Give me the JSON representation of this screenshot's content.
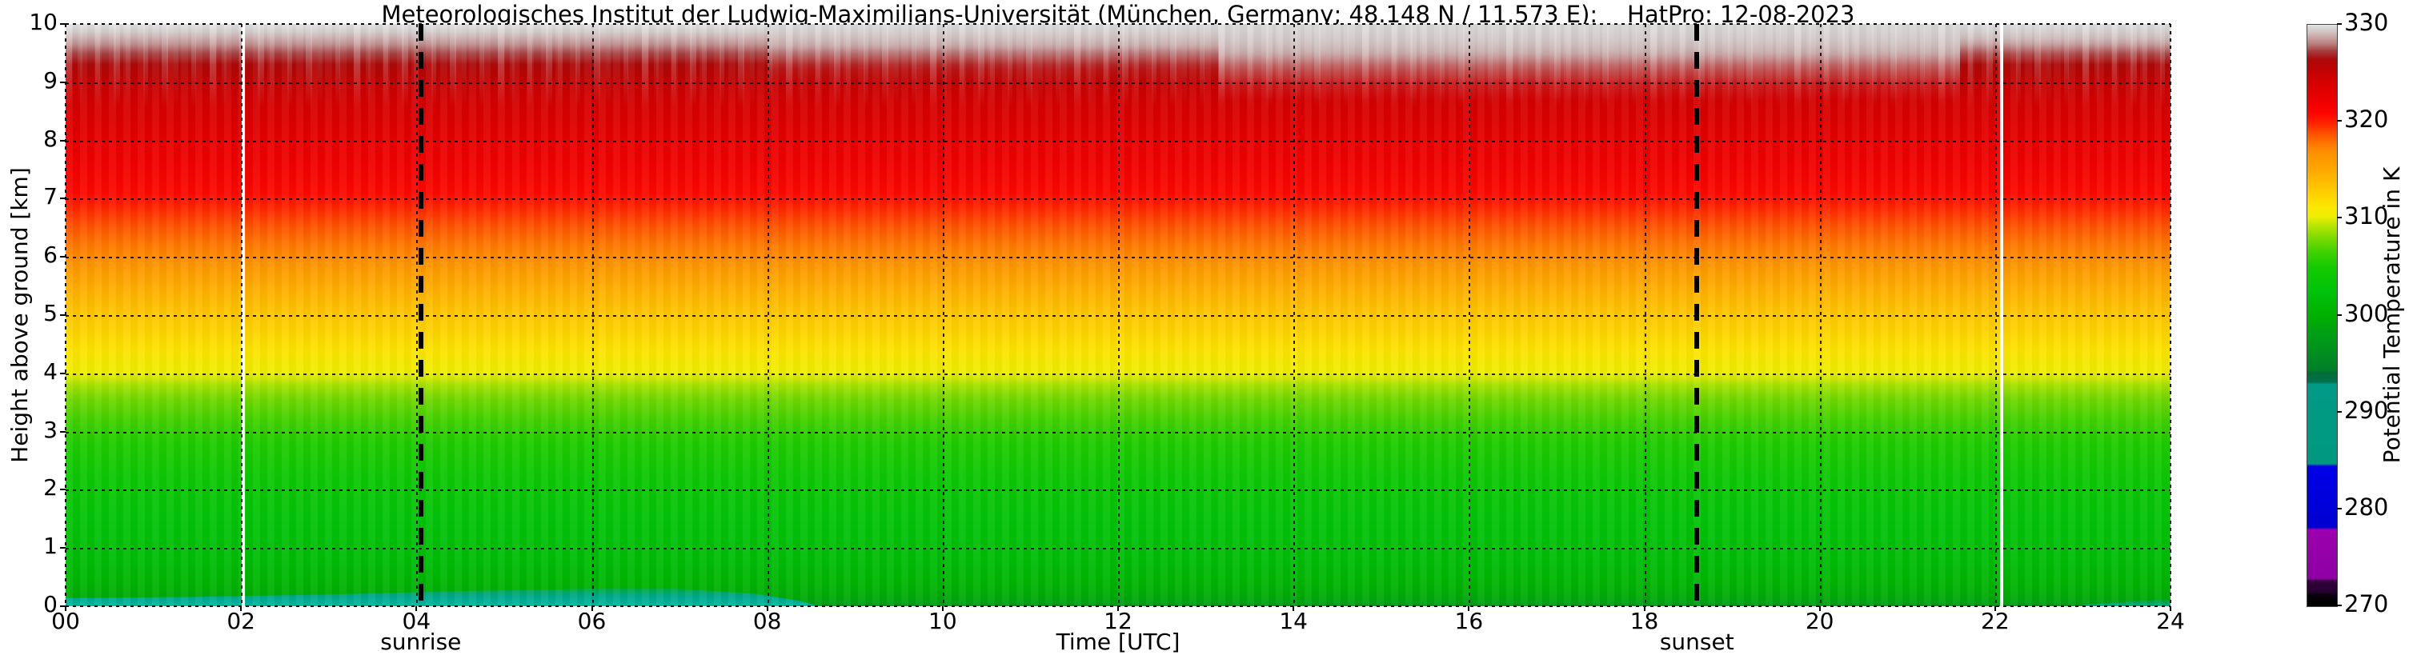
{
  "chart_data": {
    "type": "heatmap",
    "title": "Meteorologisches Institut der Ludwig-Maximilians-Universität (München, Germany; 48.148 N / 11.573 E):    HatPro: 12-08-2023",
    "xlabel": "Time [UTC]",
    "ylabel": "Height above ground [km]",
    "x_range_hours": [
      0,
      24
    ],
    "y_range_km": [
      0,
      10
    ],
    "x_tick_hours": [
      0,
      2,
      4,
      6,
      8,
      10,
      12,
      14,
      16,
      18,
      20,
      22,
      24
    ],
    "x_tick_labels": [
      "00",
      "02",
      "04",
      "06",
      "08",
      "10",
      "12",
      "14",
      "16",
      "18",
      "20",
      "22",
      "24"
    ],
    "y_tick_km": [
      0,
      1,
      2,
      3,
      4,
      5,
      6,
      7,
      8,
      9,
      10
    ],
    "y_tick_labels": [
      "0",
      "1",
      "2",
      "3",
      "4",
      "5",
      "6",
      "7",
      "8",
      "9",
      "10"
    ],
    "grid": "black dotted gridlines at every 2 h and every 1 km; dotted black frame",
    "colorbar": {
      "label": "Potential Temperature in K",
      "range": [
        270,
        330
      ],
      "tick_values": [
        270,
        280,
        290,
        300,
        310,
        320,
        330
      ],
      "tick_labels": [
        "270",
        "280",
        "290",
        "300",
        "310",
        "320",
        "330"
      ],
      "stops": [
        [
          270,
          "#000000"
        ],
        [
          271.2,
          "#08000c"
        ],
        [
          271.45,
          "#260030"
        ],
        [
          272.6,
          "#31003c"
        ],
        [
          272.85,
          "#8d00a2"
        ],
        [
          277.9,
          "#9c00b0"
        ],
        [
          278.15,
          "#0000d2"
        ],
        [
          284.45,
          "#0000e8"
        ],
        [
          284.7,
          "#00997f"
        ],
        [
          292.9,
          "#009a86"
        ],
        [
          293.15,
          "#00704d"
        ],
        [
          294.1,
          "#006e36"
        ],
        [
          294.35,
          "#007e28"
        ],
        [
          296,
          "#008d1f"
        ],
        [
          298,
          "#009e16"
        ],
        [
          300,
          "#00b000"
        ],
        [
          302.5,
          "#00c30a"
        ],
        [
          305,
          "#14ca00"
        ],
        [
          306.5,
          "#3ed100"
        ],
        [
          308,
          "#7cda00"
        ],
        [
          309.3,
          "#b8e600"
        ],
        [
          310.2,
          "#eeee00"
        ],
        [
          311.2,
          "#fce800"
        ],
        [
          312.3,
          "#ffd500"
        ],
        [
          313.8,
          "#ffbb00"
        ],
        [
          315.2,
          "#ffa500"
        ],
        [
          316.6,
          "#ff9300"
        ],
        [
          317.6,
          "#ff7c00"
        ],
        [
          318.8,
          "#ff5000"
        ],
        [
          319.9,
          "#ff2000"
        ],
        [
          321,
          "#fc0300"
        ],
        [
          322.3,
          "#ec0000"
        ],
        [
          323.8,
          "#d80000"
        ],
        [
          325.2,
          "#c30202"
        ],
        [
          326.4,
          "#ac0808"
        ],
        [
          327.3,
          "#a63e3e"
        ],
        [
          328.1,
          "#bc8282"
        ],
        [
          328.9,
          "#cdb0b0"
        ],
        [
          329.5,
          "#d4cfcf"
        ],
        [
          329.85,
          "#d9d9d9"
        ],
        [
          330,
          "#f2f0f0"
        ]
      ]
    },
    "mean_profile_z_theta": [
      [
        0.0,
        297.2
      ],
      [
        0.05,
        298.2
      ],
      [
        0.15,
        299.4
      ],
      [
        0.4,
        300.7
      ],
      [
        0.8,
        301.7
      ],
      [
        1.5,
        302.9
      ],
      [
        2.2,
        304.1
      ],
      [
        2.8,
        305.4
      ],
      [
        3.2,
        306.6
      ],
      [
        3.55,
        307.7
      ],
      [
        3.8,
        308.9
      ],
      [
        4.0,
        310.2
      ],
      [
        4.4,
        311.5
      ],
      [
        4.9,
        312.8
      ],
      [
        5.4,
        314.4
      ],
      [
        5.9,
        316.6
      ],
      [
        6.2,
        317.7
      ],
      [
        6.55,
        318.8
      ],
      [
        6.85,
        319.8
      ],
      [
        7.1,
        320.8
      ],
      [
        7.6,
        321.9
      ],
      [
        8.2,
        323.1
      ],
      [
        8.8,
        324.3
      ],
      [
        9.05,
        325.4
      ],
      [
        9.3,
        326.3
      ],
      [
        9.5,
        327.4
      ],
      [
        9.65,
        328.3
      ],
      [
        9.78,
        329.0
      ],
      [
        9.88,
        329.5
      ],
      [
        10.0,
        329.9
      ]
    ],
    "annotations": [
      {
        "label": "sunrise",
        "time_utc": 4.05,
        "style": "bold black dashed vertical line"
      },
      {
        "label": "sunset",
        "time_utc": 18.6,
        "style": "bold black dashed vertical line"
      }
    ],
    "data_gap_lines_utc": [
      2.03,
      22.07
    ],
    "features": {
      "surface_cold_layer": {
        "time_utc": [
          0,
          8.6
        ],
        "height_km": [
          0,
          0.38
        ],
        "theta_K": "~288-294",
        "color": "#00a98c",
        "desc": "cool (teal) near-surface layer during night and early morning, deepest ~05-07:30 UTC, eroded by ~08:30 UTC"
      },
      "evening_surface_cooling": {
        "time_utc": [
          23.0,
          24
        ],
        "height_km": [
          0,
          0.15
        ],
        "theta_K": "~292",
        "color": "#00aa8d"
      },
      "upper_whitening": [
        {
          "time_utc": [
            8.0,
            13.15
          ],
          "below_km": 9.0,
          "intensity": 0.5
        },
        {
          "time_utc": [
            13.15,
            21.6
          ],
          "below_km": 8.7,
          "intensity": 0.78
        },
        {
          "time_utc": [
            21.6,
            24.0
          ],
          "below_km": 9.3,
          "intensity": 0.38
        }
      ]
    }
  }
}
